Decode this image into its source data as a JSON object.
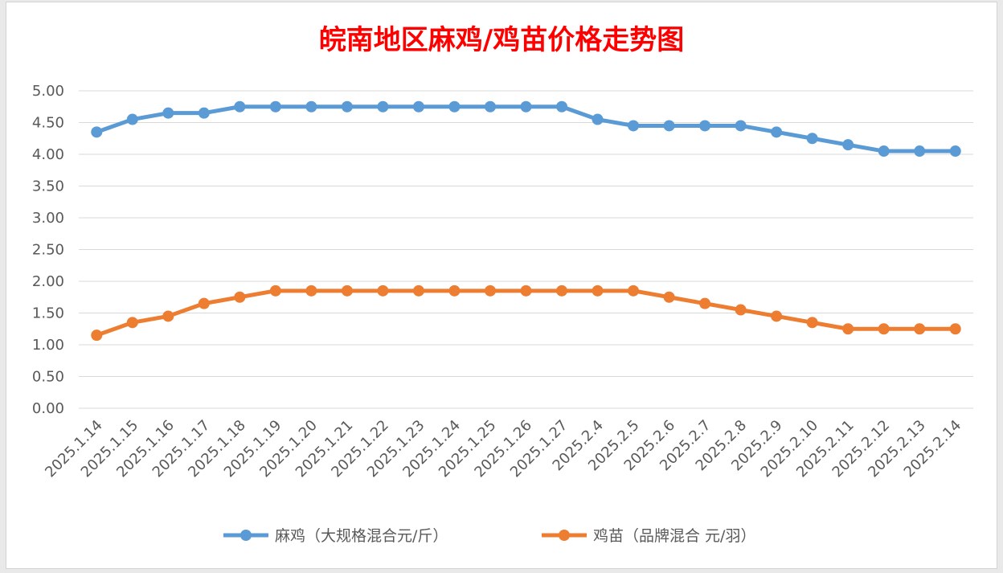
{
  "chart_data": {
    "type": "line",
    "title": "皖南地区麻鸡/鸡苗价格走势图",
    "xlabel": "",
    "ylabel": "",
    "ylim": [
      0,
      5
    ],
    "y_step": 0.5,
    "y_ticks": [
      "0.00",
      "0.50",
      "1.00",
      "1.50",
      "2.00",
      "2.50",
      "3.00",
      "3.50",
      "4.00",
      "4.50",
      "5.00"
    ],
    "grid": true,
    "legend_position": "bottom",
    "categories": [
      "2025.1.14",
      "2025.1.15",
      "2025.1.16",
      "2025.1.17",
      "2025.1.18",
      "2025.1.19",
      "2025.1.20",
      "2025.1.21",
      "2025.1.22",
      "2025.1.23",
      "2025.1.24",
      "2025.1.25",
      "2025.1.26",
      "2025.1.27",
      "2025.2.4",
      "2025.2.5",
      "2025.2.6",
      "2025.2.7",
      "2025.2.8",
      "2025.2.9",
      "2025.2.10",
      "2025.2.11",
      "2025.2.12",
      "2025.2.13",
      "2025.2.14"
    ],
    "series": [
      {
        "name": "麻鸡（大规格混合元/斤）",
        "color": "#5b9bd5",
        "values": [
          4.35,
          4.55,
          4.65,
          4.65,
          4.75,
          4.75,
          4.75,
          4.75,
          4.75,
          4.75,
          4.75,
          4.75,
          4.75,
          4.75,
          4.55,
          4.45,
          4.45,
          4.45,
          4.45,
          4.35,
          4.25,
          4.15,
          4.05,
          4.05,
          4.05
        ]
      },
      {
        "name": "鸡苗（品牌混合 元/羽）",
        "color": "#ed7d31",
        "values": [
          1.15,
          1.35,
          1.45,
          1.65,
          1.75,
          1.85,
          1.85,
          1.85,
          1.85,
          1.85,
          1.85,
          1.85,
          1.85,
          1.85,
          1.85,
          1.85,
          1.75,
          1.65,
          1.55,
          1.45,
          1.35,
          1.25,
          1.25,
          1.25,
          1.25
        ]
      }
    ]
  }
}
